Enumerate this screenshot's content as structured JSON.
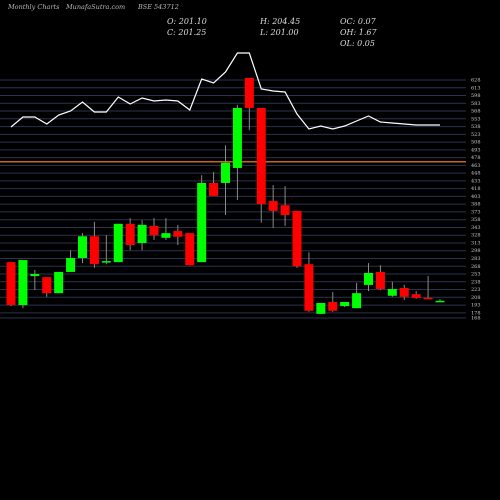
{
  "chart_data": {
    "type": "candlestick",
    "header": [
      "Monthly Charts",
      "MunafaSutra.com",
      "BSE 543712"
    ],
    "info": [
      [
        "O: 201.10",
        "C: 201.25"
      ],
      [
        "H: 204.45",
        "L: 201.00"
      ],
      [
        "OC: 0.07",
        "OH: 1.67",
        "OL: 0.05"
      ]
    ],
    "up_color": "#00ff00",
    "down_color": "#ff0000",
    "wick_color": "#8a8a8a",
    "grid": true,
    "grid_color": "#2a3350",
    "ylim": [
      168,
      628
    ],
    "yticks": [
      628,
      613,
      598,
      583,
      568,
      553,
      538,
      523,
      508,
      493,
      478,
      463,
      448,
      433,
      418,
      403,
      388,
      373,
      358,
      343,
      328,
      313,
      298,
      283,
      268,
      253,
      238,
      223,
      208,
      193,
      178,
      168
    ],
    "reference_line": {
      "value": 470,
      "color": "#c8641e"
    },
    "open": [
      276,
      193,
      249,
      247,
      216,
      257,
      284,
      326,
      276,
      276,
      350,
      313,
      346,
      323,
      336,
      332,
      276,
      429,
      429,
      458,
      632,
      574,
      394,
      386,
      375,
      272,
      176,
      199,
      191,
      187,
      232,
      257,
      211,
      226,
      214,
      207,
      201.1
    ],
    "high": [
      276,
      280,
      261,
      247,
      257,
      299,
      332,
      354,
      328,
      350,
      361,
      357,
      361,
      361,
      348,
      332,
      444,
      450,
      502,
      580,
      632,
      574,
      425,
      423,
      375,
      295,
      197,
      218,
      199,
      236,
      274,
      270,
      238,
      232,
      220,
      249,
      204.45
    ],
    "low": [
      191,
      187,
      222,
      209,
      216,
      257,
      274,
      265,
      272,
      276,
      299,
      299,
      319,
      319,
      309,
      270,
      276,
      404,
      367,
      396,
      531,
      352,
      342,
      346,
      265,
      180,
      176,
      180,
      189,
      187,
      220,
      222,
      209,
      203,
      205,
      205,
      201
    ],
    "close": [
      193,
      280,
      253,
      216,
      257,
      284,
      326,
      272,
      278,
      350,
      309,
      348,
      328,
      332,
      325,
      270,
      429,
      404,
      468,
      574,
      574,
      388,
      375,
      367,
      268,
      182,
      197,
      182,
      199,
      216,
      255,
      224,
      224,
      209,
      207,
      205,
      201.25
    ],
    "overlay": {
      "color": "#ffffff",
      "ylim": [
        0,
        100
      ],
      "values": [
        13,
        23,
        23,
        16,
        25,
        29,
        38,
        28,
        28,
        43,
        36,
        42,
        39,
        40,
        39,
        30,
        61,
        57,
        68,
        87,
        87,
        51,
        49,
        48,
        26,
        11,
        14,
        11,
        14,
        19,
        24,
        18,
        17,
        16,
        15,
        15,
        15
      ]
    }
  }
}
